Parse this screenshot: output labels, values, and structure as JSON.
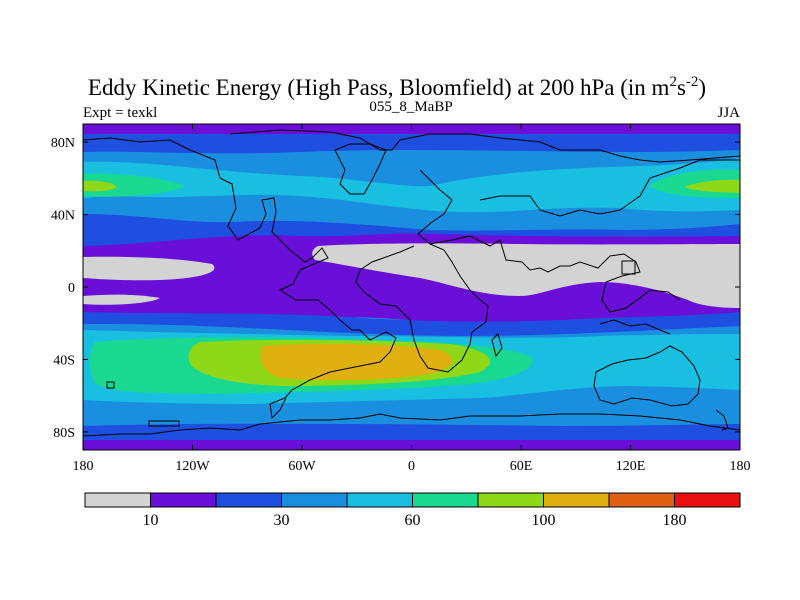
{
  "chart_data": {
    "type": "heatmap",
    "title_main": "Eddy Kinetic Energy (High Pass, Bloomfield) at 200 hPa (in m",
    "title_sup1": "2",
    "title_mid": "s",
    "title_sup2": "-2",
    "title_end": ")",
    "left_label": "Expt = texkl",
    "center_label": "055_8_MaBP",
    "right_label": "JJA",
    "x_ticks": [
      {
        "value": -180,
        "label": "180"
      },
      {
        "value": -120,
        "label": "120W"
      },
      {
        "value": -60,
        "label": "60W"
      },
      {
        "value": 0,
        "label": "0"
      },
      {
        "value": 60,
        "label": "60E"
      },
      {
        "value": 120,
        "label": "120E"
      },
      {
        "value": 180,
        "label": "180"
      }
    ],
    "y_ticks": [
      {
        "value": 80,
        "label": "80N"
      },
      {
        "value": 40,
        "label": "40N"
      },
      {
        "value": 0,
        "label": "0"
      },
      {
        "value": -40,
        "label": "40S"
      },
      {
        "value": -80,
        "label": "80S"
      }
    ],
    "lon_range": [
      -180,
      180
    ],
    "lat_range": [
      -90,
      90
    ],
    "colorbar": {
      "colors": [
        "#d3d3d3",
        "#6a0fd8",
        "#1f4fe0",
        "#1a8fe0",
        "#19bfe0",
        "#19d890",
        "#8fd818",
        "#e0b010",
        "#e06010",
        "#e81010"
      ],
      "labels": [
        {
          "boundary": 1,
          "text": "10"
        },
        {
          "boundary": 3,
          "text": "30"
        },
        {
          "boundary": 5,
          "text": "60"
        },
        {
          "boundary": 7,
          "text": "100"
        },
        {
          "boundary": 9,
          "text": "180"
        }
      ]
    }
  }
}
